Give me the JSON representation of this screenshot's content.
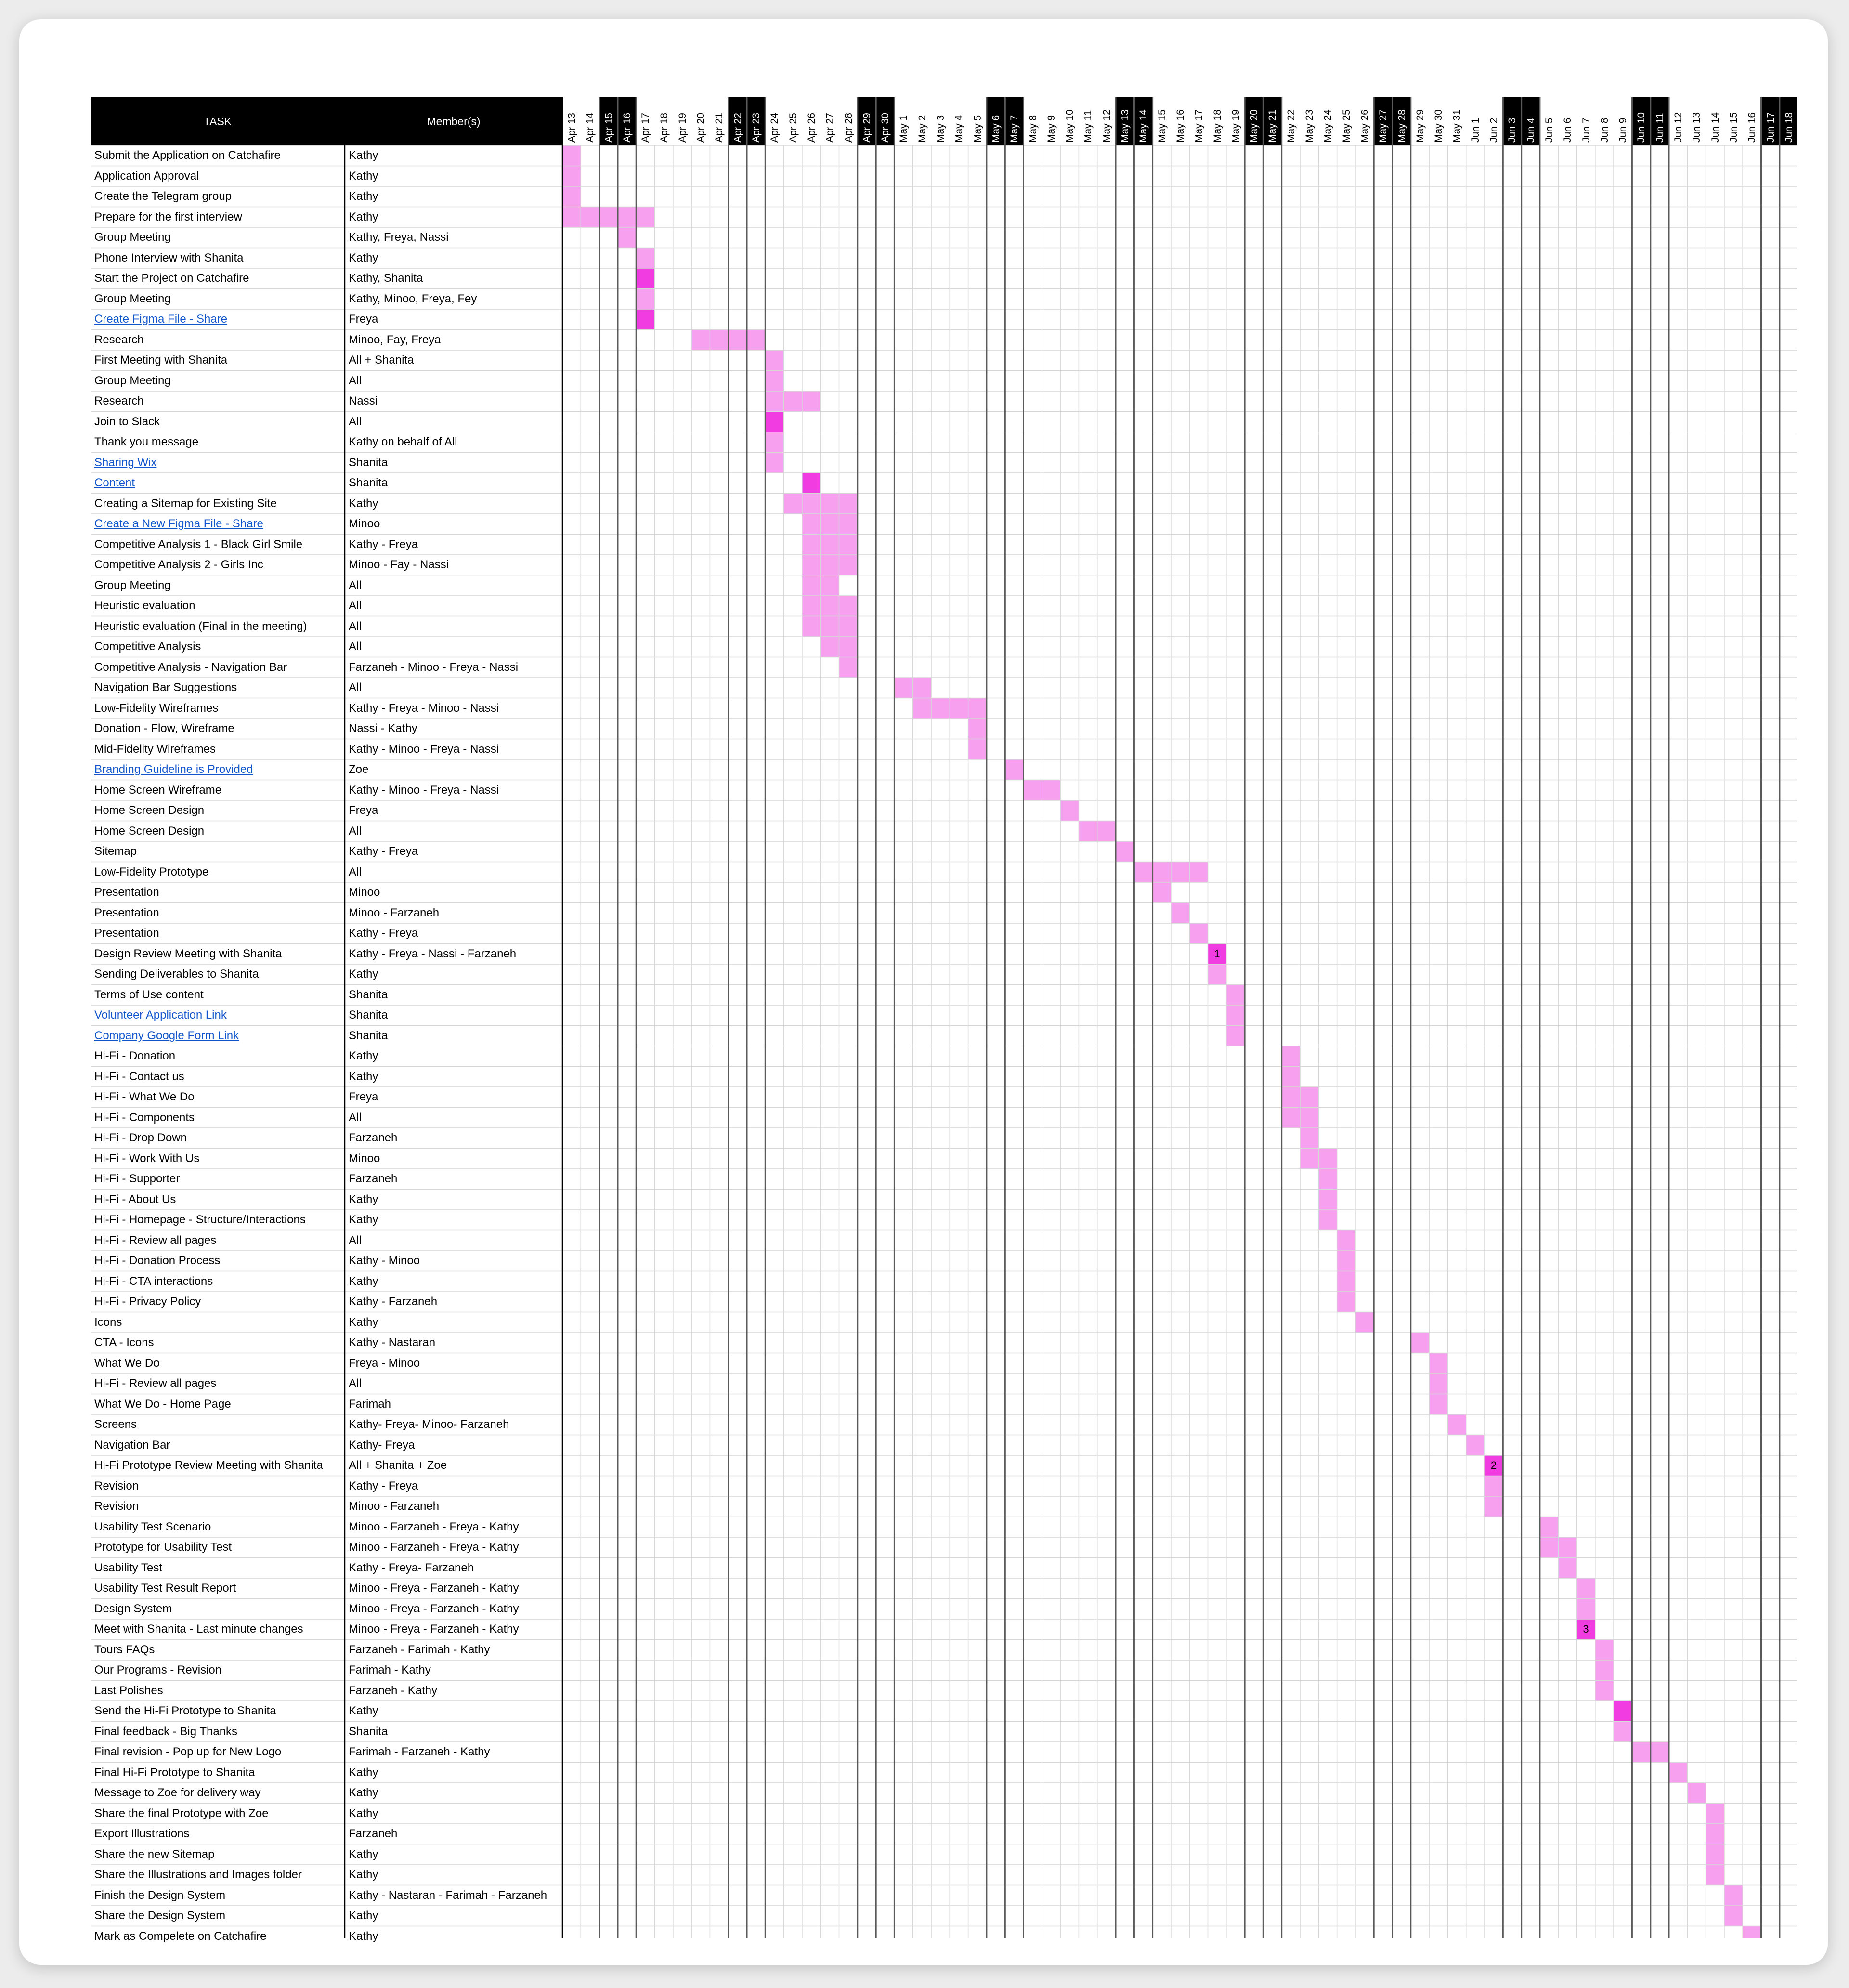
{
  "header": {
    "task_label": "TASK",
    "member_label": "Member(s)"
  },
  "colors": {
    "header_bg": "#000000",
    "light_mark": "#f6a0ef",
    "dark_mark": "#f03ce0",
    "link": "#1155cc",
    "grid": "#d6d6d6",
    "thick": "#5a5a5a"
  },
  "chart_data": {
    "type": "gantt",
    "dates": [
      "Apr 13",
      "Apr 14",
      "Apr 15",
      "Apr 16",
      "Apr 17",
      "Apr 18",
      "Apr 19",
      "Apr 20",
      "Apr 21",
      "Apr 22",
      "Apr 23",
      "Apr 24",
      "Apr 25",
      "Apr 26",
      "Apr 27",
      "Apr 28",
      "Apr 29",
      "Apr 30",
      "May 1",
      "May 2",
      "May 3",
      "May 4",
      "May 5",
      "May 6",
      "May 7",
      "May 8",
      "May 9",
      "May 10",
      "May 11",
      "May 12",
      "May 13",
      "May 14",
      "May 15",
      "May 16",
      "May 17",
      "May 18",
      "May 19",
      "May 20",
      "May 21",
      "May 22",
      "May 23",
      "May 24",
      "May 25",
      "May 26",
      "May 27",
      "May 28",
      "May 29",
      "May 30",
      "May 31",
      "Jun 1",
      "Jun 2",
      "Jun 3",
      "Jun 4",
      "Jun 5",
      "Jun 6",
      "Jun 7",
      "Jun 8",
      "Jun 9",
      "Jun 10",
      "Jun 11",
      "Jun 12",
      "Jun 13",
      "Jun 14",
      "Jun 15",
      "Jun 16",
      "Jun 17",
      "Jun 18"
    ],
    "weekend_days": [
      "Apr 15",
      "Apr 16",
      "Apr 22",
      "Apr 23",
      "Apr 29",
      "Apr 30",
      "May 6",
      "May 7",
      "May 13",
      "May 14",
      "May 20",
      "May 21",
      "May 27",
      "May 28",
      "Jun 3",
      "Jun 4",
      "Jun 10",
      "Jun 11",
      "Jun 17",
      "Jun 18"
    ],
    "tasks": [
      {
        "task": "Submit the Application on Catchafire",
        "members": "Kathy",
        "start": "Apr 13",
        "end": "Apr 13"
      },
      {
        "task": "Application Approval",
        "members": "Kathy",
        "start": "Apr 13",
        "end": "Apr 13"
      },
      {
        "task": "Create the Telegram group",
        "members": "Kathy",
        "start": "Apr 13",
        "end": "Apr 13"
      },
      {
        "task": "Prepare for the first interview",
        "members": "Kathy",
        "start": "Apr 13",
        "end": "Apr 17"
      },
      {
        "task": "Group Meeting",
        "members": "Kathy, Freya, Nassi",
        "start": "Apr 16",
        "end": "Apr 16"
      },
      {
        "task": "Phone Interview with Shanita",
        "members": "Kathy",
        "start": "Apr 17",
        "end": "Apr 17"
      },
      {
        "task": "Start the Project on Catchafire",
        "members": "Kathy, Shanita",
        "start": "Apr 17",
        "end": "Apr 17",
        "dark": true
      },
      {
        "task": "Group Meeting",
        "members": "Kathy, Minoo, Freya, Fey",
        "start": "Apr 17",
        "end": "Apr 17"
      },
      {
        "task": "Create Figma File - Share",
        "members": "Freya",
        "start": "Apr 17",
        "end": "Apr 17",
        "dark": true,
        "link": true
      },
      {
        "task": "Research",
        "members": "Minoo, Fay, Freya",
        "start": "Apr 20",
        "end": "Apr 23"
      },
      {
        "task": "First Meeting with Shanita",
        "members": "All + Shanita",
        "start": "Apr 24",
        "end": "Apr 24"
      },
      {
        "task": "Group Meeting",
        "members": "All",
        "start": "Apr 24",
        "end": "Apr 24"
      },
      {
        "task": "Research",
        "members": "Nassi",
        "start": "Apr 24",
        "end": "Apr 26"
      },
      {
        "task": "Join to Slack",
        "members": "All",
        "start": "Apr 24",
        "end": "Apr 24",
        "dark": true
      },
      {
        "task": "Thank you message",
        "members": "Kathy on behalf of All",
        "start": "Apr 24",
        "end": "Apr 24"
      },
      {
        "task": "Sharing Wix",
        "members": "Shanita",
        "start": "Apr 24",
        "end": "Apr 24",
        "link": true
      },
      {
        "task": "Content",
        "members": "Shanita",
        "start": "Apr 26",
        "end": "Apr 26",
        "dark": true,
        "link": true
      },
      {
        "task": "Creating a Sitemap for Existing Site",
        "members": "Kathy",
        "start": "Apr 25",
        "end": "Apr 28"
      },
      {
        "task": "Create a New Figma File - Share",
        "members": "Minoo",
        "start": "Apr 26",
        "end": "Apr 28",
        "link": true
      },
      {
        "task": "Competitive Analysis 1 - Black Girl Smile",
        "members": "Kathy - Freya",
        "start": "Apr 26",
        "end": "Apr 28"
      },
      {
        "task": "Competitive Analysis 2 - Girls Inc",
        "members": "Minoo - Fay - Nassi",
        "start": "Apr 26",
        "end": "Apr 28"
      },
      {
        "task": "Group Meeting",
        "members": "All",
        "start": "Apr 26",
        "end": "Apr 27"
      },
      {
        "task": "Heuristic evaluation",
        "members": "All",
        "start": "Apr 26",
        "end": "Apr 28"
      },
      {
        "task": "Heuristic evaluation (Final in the meeting)",
        "members": "All",
        "start": "Apr 26",
        "end": "Apr 28"
      },
      {
        "task": "Competitive Analysis",
        "members": "All",
        "start": "Apr 27",
        "end": "Apr 28"
      },
      {
        "task": "Competitive Analysis - Navigation Bar",
        "members": "Farzaneh - Minoo - Freya - Nassi",
        "start": "Apr 28",
        "end": "Apr 28"
      },
      {
        "task": "Navigation Bar Suggestions",
        "members": "All",
        "start": "May 1",
        "end": "May 2"
      },
      {
        "task": "Low-Fidelity Wireframes",
        "members": "Kathy - Freya - Minoo - Nassi",
        "start": "May 2",
        "end": "May 5"
      },
      {
        "task": "Donation - Flow, Wireframe",
        "members": "Nassi - Kathy",
        "start": "May 5",
        "end": "May 5"
      },
      {
        "task": "Mid-Fidelity Wireframes",
        "members": "Kathy - Minoo - Freya - Nassi",
        "start": "May 5",
        "end": "May 5"
      },
      {
        "task": "Branding Guideline is Provided",
        "members": "Zoe",
        "start": "May 7",
        "end": "May 7",
        "link": true
      },
      {
        "task": "Home Screen Wireframe",
        "members": "Kathy - Minoo - Freya - Nassi",
        "start": "May 8",
        "end": "May 9"
      },
      {
        "task": "Home Screen Design",
        "members": "Freya",
        "start": "May 10",
        "end": "May 10"
      },
      {
        "task": "Home Screen Design",
        "members": "All",
        "start": "May 11",
        "end": "May 12"
      },
      {
        "task": "Sitemap",
        "members": "Kathy - Freya",
        "start": "May 13",
        "end": "May 13"
      },
      {
        "task": "Low-Fidelity Prototype",
        "members": "All",
        "start": "May 14",
        "end": "May 17"
      },
      {
        "task": "Presentation",
        "members": "Minoo",
        "start": "May 15",
        "end": "May 15"
      },
      {
        "task": "Presentation",
        "members": "Minoo - Farzaneh",
        "start": "May 16",
        "end": "May 16"
      },
      {
        "task": "Presentation",
        "members": "Kathy - Freya",
        "start": "May 17",
        "end": "May 17"
      },
      {
        "task": "Design Review Meeting with Shanita",
        "members": "Kathy - Freya - Nassi - Farzaneh",
        "start": "May 18",
        "end": "May 18",
        "dark": true,
        "mark": "1"
      },
      {
        "task": "Sending Deliverables to Shanita",
        "members": "Kathy",
        "start": "May 18",
        "end": "May 18"
      },
      {
        "task": "Terms of Use content",
        "members": "Shanita",
        "start": "May 19",
        "end": "May 19"
      },
      {
        "task": "Volunteer Application Link",
        "members": "Shanita",
        "start": "May 19",
        "end": "May 19",
        "link": true
      },
      {
        "task": "Company Google Form Link",
        "members": "Shanita",
        "start": "May 19",
        "end": "May 19",
        "link": true
      },
      {
        "task": "Hi-Fi - Donation",
        "members": "Kathy",
        "start": "May 22",
        "end": "May 22"
      },
      {
        "task": "Hi-Fi - Contact us",
        "members": "Kathy",
        "start": "May 22",
        "end": "May 22"
      },
      {
        "task": "Hi-Fi - What We Do",
        "members": "Freya",
        "start": "May 22",
        "end": "May 23"
      },
      {
        "task": "Hi-Fi - Components",
        "members": "All",
        "start": "May 22",
        "end": "May 23"
      },
      {
        "task": "Hi-Fi - Drop Down",
        "members": "Farzaneh",
        "start": "May 23",
        "end": "May 23"
      },
      {
        "task": "Hi-Fi - Work With Us",
        "members": "Minoo",
        "start": "May 23",
        "end": "May 24"
      },
      {
        "task": "Hi-Fi - Supporter",
        "members": "Farzaneh",
        "start": "May 24",
        "end": "May 24"
      },
      {
        "task": "Hi-Fi - About Us",
        "members": "Kathy",
        "start": "May 24",
        "end": "May 24"
      },
      {
        "task": "Hi-Fi - Homepage - Structure/Interactions",
        "members": "Kathy",
        "start": "May 24",
        "end": "May 24"
      },
      {
        "task": "Hi-Fi - Review all pages",
        "members": "All",
        "start": "May 25",
        "end": "May 25"
      },
      {
        "task": "Hi-Fi - Donation Process",
        "members": "Kathy - Minoo",
        "start": "May 25",
        "end": "May 25"
      },
      {
        "task": "Hi-Fi - CTA interactions",
        "members": "Kathy",
        "start": "May 25",
        "end": "May 25"
      },
      {
        "task": "Hi-Fi - Privacy Policy",
        "members": "Kathy - Farzaneh",
        "start": "May 25",
        "end": "May 25"
      },
      {
        "task": "Icons",
        "members": "Kathy",
        "start": "May 26",
        "end": "May 26"
      },
      {
        "task": "CTA - Icons",
        "members": "Kathy - Nastaran",
        "start": "May 29",
        "end": "May 29"
      },
      {
        "task": "What We Do",
        "members": "Freya - Minoo",
        "start": "May 30",
        "end": "May 30"
      },
      {
        "task": "Hi-Fi - Review all pages",
        "members": "All",
        "start": "May 30",
        "end": "May 30"
      },
      {
        "task": "What We Do - Home Page",
        "members": "Farimah",
        "start": "May 30",
        "end": "May 30"
      },
      {
        "task": "Screens",
        "members": "Kathy- Freya- Minoo- Farzaneh",
        "start": "May 31",
        "end": "May 31"
      },
      {
        "task": "Navigation Bar",
        "members": "Kathy- Freya",
        "start": "Jun 1",
        "end": "Jun 1"
      },
      {
        "task": "Hi-Fi Prototype Review Meeting with Shanita",
        "members": "All + Shanita + Zoe",
        "start": "Jun 2",
        "end": "Jun 2",
        "dark": true,
        "mark": "2"
      },
      {
        "task": "Revision",
        "members": "Kathy - Freya",
        "start": "Jun 2",
        "end": "Jun 2"
      },
      {
        "task": "Revision",
        "members": "Minoo - Farzaneh",
        "start": "Jun 2",
        "end": "Jun 2"
      },
      {
        "task": "Usability Test Scenario",
        "members": "Minoo - Farzaneh - Freya - Kathy",
        "start": "Jun 5",
        "end": "Jun 5"
      },
      {
        "task": "Prototype for Usability Test",
        "members": "Minoo - Farzaneh - Freya - Kathy",
        "start": "Jun 5",
        "end": "Jun 6"
      },
      {
        "task": "Usability Test",
        "members": "Kathy - Freya- Farzaneh",
        "start": "Jun 6",
        "end": "Jun 6"
      },
      {
        "task": "Usability Test Result Report",
        "members": "Minoo - Freya - Farzaneh - Kathy",
        "start": "Jun 7",
        "end": "Jun 7"
      },
      {
        "task": "Design System",
        "members": "Minoo - Freya - Farzaneh - Kathy",
        "start": "Jun 7",
        "end": "Jun 7"
      },
      {
        "task": "Meet with Shanita - Last minute changes",
        "members": "Minoo - Freya - Farzaneh - Kathy",
        "start": "Jun 7",
        "end": "Jun 7",
        "dark": true,
        "mark": "3"
      },
      {
        "task": "Tours FAQs",
        "members": "Farzaneh - Farimah - Kathy",
        "start": "Jun 8",
        "end": "Jun 8"
      },
      {
        "task": "Our Programs - Revision",
        "members": "Farimah - Kathy",
        "start": "Jun 8",
        "end": "Jun 8"
      },
      {
        "task": "Last Polishes",
        "members": "Farzaneh - Kathy",
        "start": "Jun 8",
        "end": "Jun 8"
      },
      {
        "task": "Send the Hi-Fi Prototype to Shanita",
        "members": "Kathy",
        "start": "Jun 9",
        "end": "Jun 9",
        "dark": true
      },
      {
        "task": "Final feedback - Big Thanks",
        "members": "Shanita",
        "start": "Jun 9",
        "end": "Jun 9"
      },
      {
        "task": "Final revision - Pop up for New Logo",
        "members": "Farimah - Farzaneh - Kathy",
        "start": "Jun 10",
        "end": "Jun 11"
      },
      {
        "task": "Final Hi-Fi Prototype to Shanita",
        "members": "Kathy",
        "start": "Jun 12",
        "end": "Jun 12"
      },
      {
        "task": "Message to Zoe for delivery way",
        "members": "Kathy",
        "start": "Jun 13",
        "end": "Jun 13"
      },
      {
        "task": "Share the final Prototype with Zoe",
        "members": "Kathy",
        "start": "Jun 14",
        "end": "Jun 14"
      },
      {
        "task": "Export Illustrations",
        "members": "Farzaneh",
        "start": "Jun 14",
        "end": "Jun 14"
      },
      {
        "task": "Share the new Sitemap",
        "members": "Kathy",
        "start": "Jun 14",
        "end": "Jun 14"
      },
      {
        "task": "Share the Illustrations and Images folder",
        "members": "Kathy",
        "start": "Jun 14",
        "end": "Jun 14"
      },
      {
        "task": "Finish the Design System",
        "members": "Kathy - Nastaran - Farimah - Farzaneh",
        "start": "Jun 15",
        "end": "Jun 15"
      },
      {
        "task": "Share the Design System",
        "members": "Kathy",
        "start": "Jun 15",
        "end": "Jun 15"
      },
      {
        "task": "Mark as Compelete on Catchafire",
        "members": "Kathy",
        "start": "Jun 16",
        "end": "Jun 16"
      }
    ]
  }
}
